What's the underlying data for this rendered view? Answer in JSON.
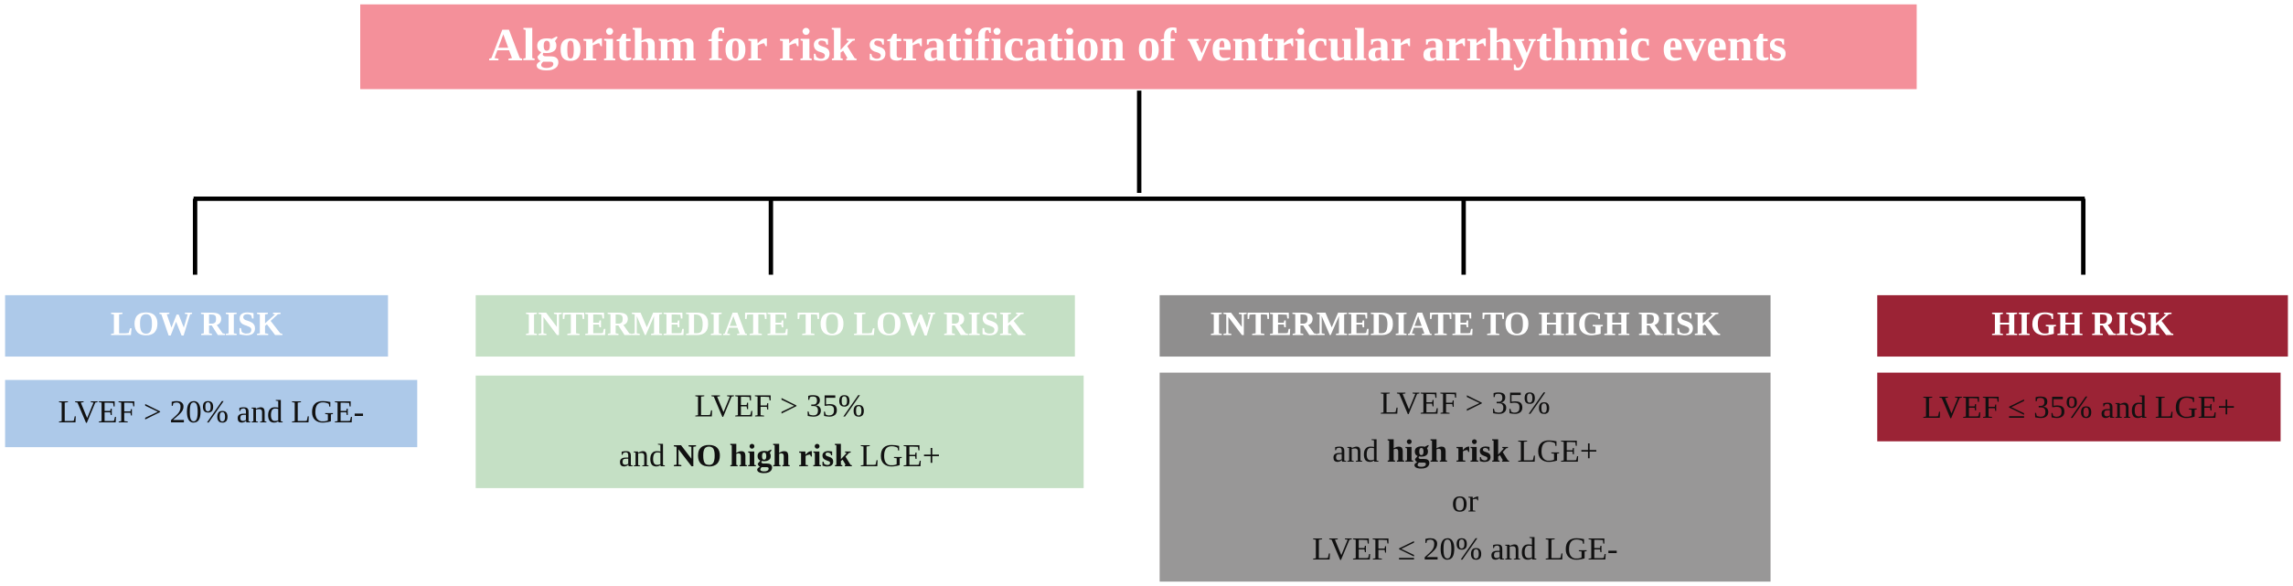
{
  "title": "Algorithm for risk stratification of ventricular arrhythmic events",
  "branches": [
    {
      "label": "LOW RISK",
      "lines": [
        [
          {
            "text": "LVEF > 20% and LGE-"
          }
        ]
      ]
    },
    {
      "label": "INTERMEDIATE TO LOW RISK",
      "lines": [
        [
          {
            "text": "LVEF > 35%"
          }
        ],
        [
          {
            "text": "and "
          },
          {
            "text": "NO high risk",
            "bold": true
          },
          {
            "text": " LGE+"
          }
        ]
      ]
    },
    {
      "label": "INTERMEDIATE TO HIGH RISK",
      "lines": [
        [
          {
            "text": "LVEF > 35%"
          }
        ],
        [
          {
            "text": "and "
          },
          {
            "text": "high risk",
            "bold": true
          },
          {
            "text": " LGE+"
          }
        ],
        [
          {
            "text": "or"
          }
        ],
        [
          {
            "text": "LVEF ≤ 20% and LGE-"
          }
        ]
      ]
    },
    {
      "label": "HIGH RISK",
      "lines": [
        [
          {
            "text": "LVEF ≤ 35% and LGE+"
          }
        ]
      ]
    }
  ]
}
